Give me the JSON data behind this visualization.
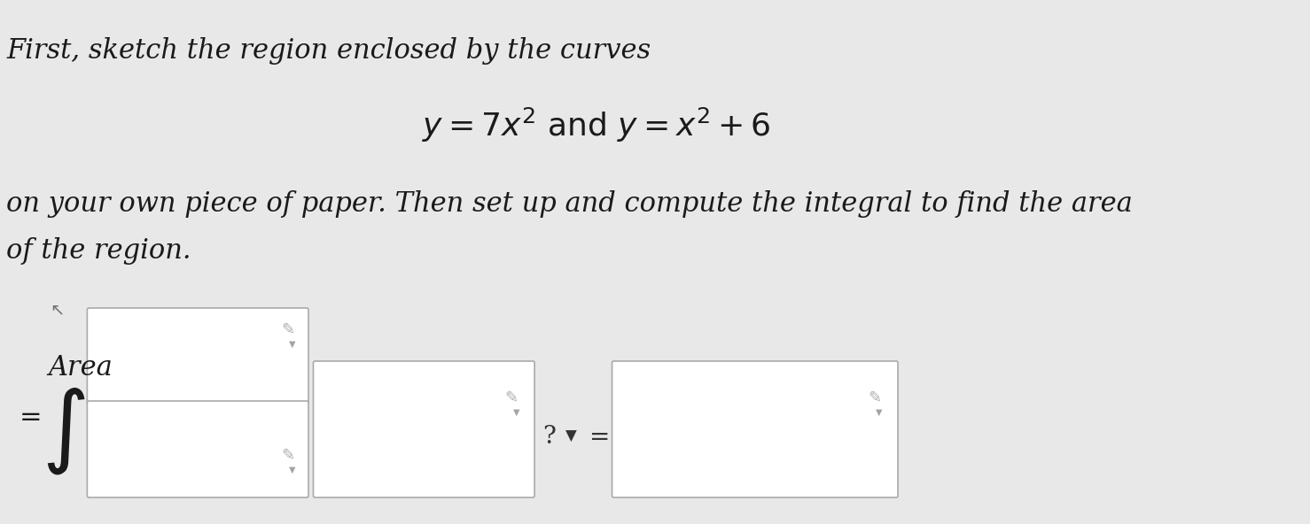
{
  "background_color": "#e8e8e8",
  "text_color": "#1a1a1a",
  "line1": "First, sketch the region enclosed by the curves",
  "line2_math": "$y = 7x^2$ and $y = x^2 + 6$",
  "line3": "on your own piece of paper. Then set up and compute the integral to find the area",
  "line4": "of the region.",
  "area_label": "Area",
  "equals_integral": "$= \\int$",
  "question_mark": "?",
  "equals_sign": "=",
  "box_color": "#e0e0e0",
  "box_border": "#aaaaaa",
  "font_size_main": 22,
  "font_size_math": 26,
  "font_size_bottom": 24,
  "pencil_color": "#888888"
}
